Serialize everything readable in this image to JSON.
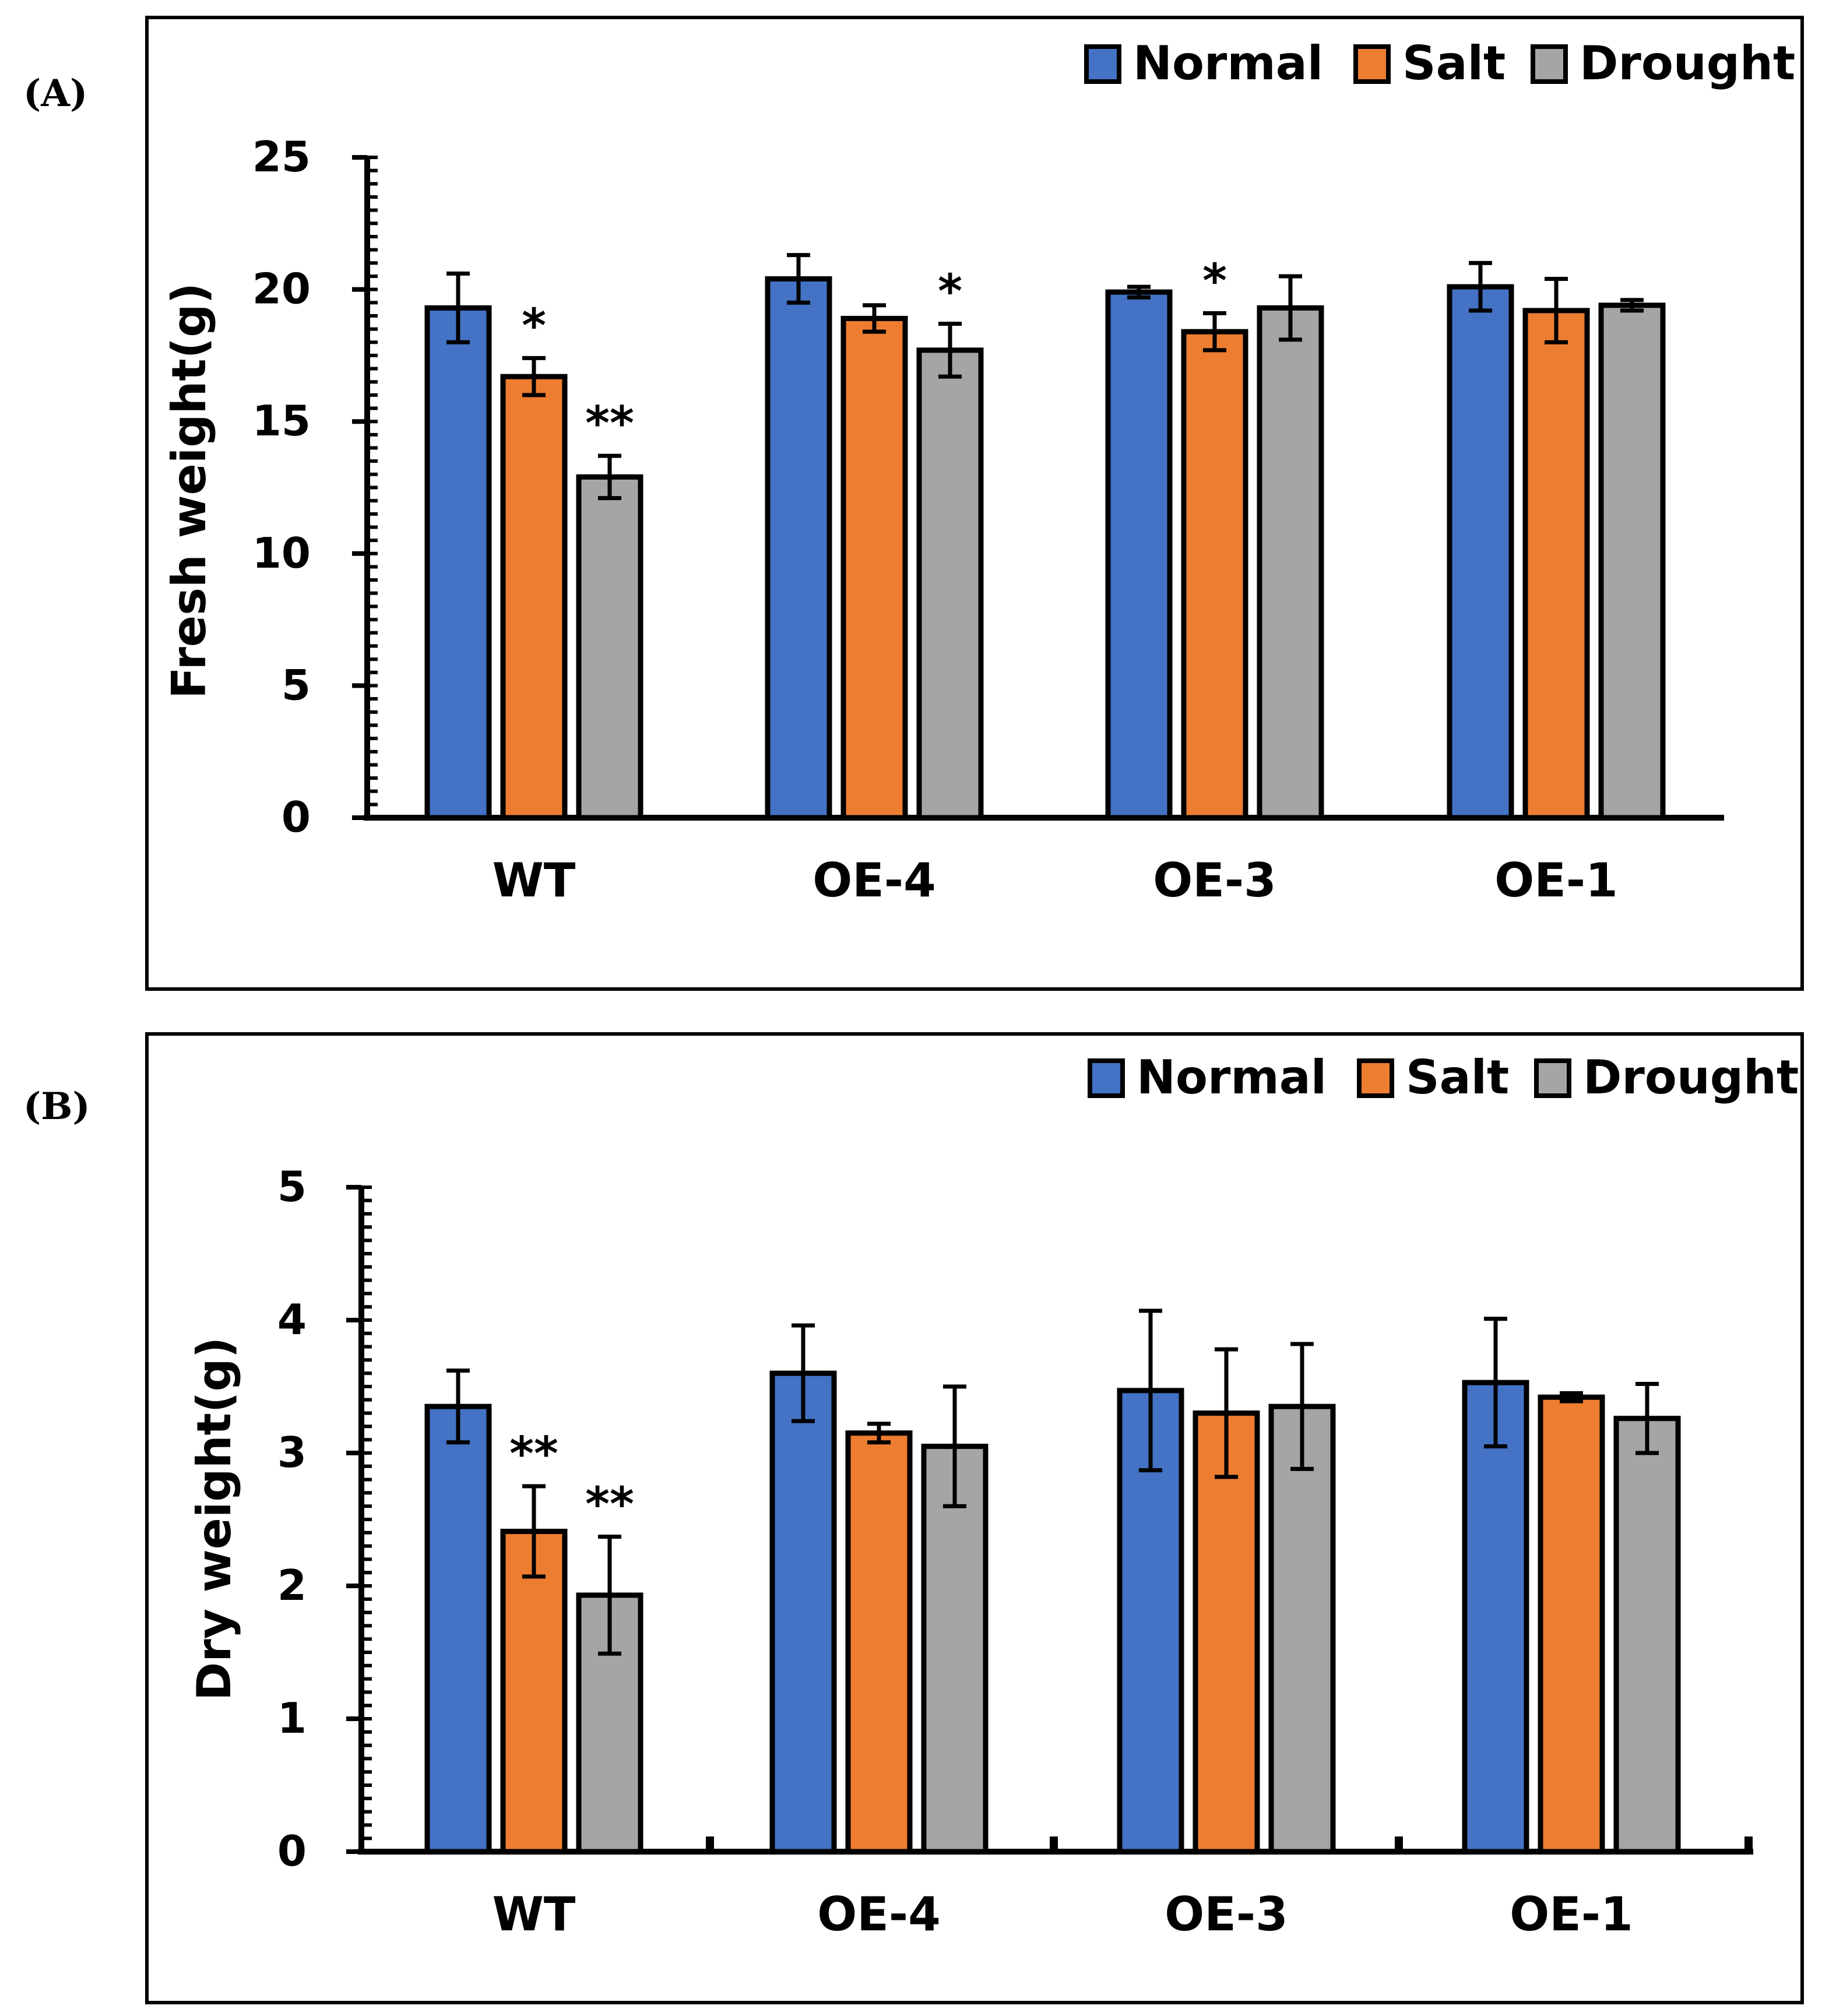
{
  "chart_data": [
    {
      "type": "bar",
      "panel_label": "(A)",
      "ylabel": "Fresh weight(g)",
      "xlabel": "",
      "ylim": [
        0,
        25
      ],
      "yticks": [
        0,
        5,
        10,
        15,
        20,
        25
      ],
      "categories": [
        "WT",
        "OE-4",
        "OE-3",
        "OE-1"
      ],
      "series": [
        {
          "name": "Normal",
          "color": "#4472C4",
          "values": [
            19.3,
            20.4,
            19.9,
            20.1
          ],
          "errors": [
            1.3,
            0.9,
            0.2,
            0.9
          ]
        },
        {
          "name": "Salt",
          "color": "#ED7D31",
          "values": [
            16.7,
            18.9,
            18.4,
            19.2
          ],
          "errors": [
            0.7,
            0.5,
            0.7,
            1.2
          ]
        },
        {
          "name": "Drought",
          "color": "#A5A5A5",
          "values": [
            12.9,
            17.7,
            19.3,
            19.4
          ],
          "errors": [
            0.8,
            1.0,
            1.2,
            0.2
          ]
        }
      ],
      "annotations": [
        {
          "category": 0,
          "series": 1,
          "text": "*"
        },
        {
          "category": 0,
          "series": 2,
          "text": "**"
        },
        {
          "category": 1,
          "series": 2,
          "text": "*"
        },
        {
          "category": 2,
          "series": 1,
          "text": "*"
        }
      ],
      "legend_position": "top-right"
    },
    {
      "type": "bar",
      "panel_label": "(B)",
      "ylabel": "Dry weight(g)",
      "xlabel": "",
      "ylim": [
        0,
        5
      ],
      "yticks": [
        0,
        1,
        2,
        3,
        4,
        5
      ],
      "categories": [
        "WT",
        "OE-4",
        "OE-3",
        "OE-1"
      ],
      "series": [
        {
          "name": "Normal",
          "color": "#4472C4",
          "values": [
            3.35,
            3.6,
            3.47,
            3.53
          ],
          "errors": [
            0.27,
            0.36,
            0.6,
            0.48
          ]
        },
        {
          "name": "Salt",
          "color": "#ED7D31",
          "values": [
            2.41,
            3.15,
            3.3,
            3.42
          ],
          "errors": [
            0.34,
            0.07,
            0.48,
            0.03
          ]
        },
        {
          "name": "Drought",
          "color": "#A5A5A5",
          "values": [
            1.93,
            3.05,
            3.35,
            3.26
          ],
          "errors": [
            0.44,
            0.45,
            0.47,
            0.26
          ]
        }
      ],
      "annotations": [
        {
          "category": 0,
          "series": 1,
          "text": "**"
        },
        {
          "category": 0,
          "series": 2,
          "text": "**"
        }
      ],
      "legend_position": "top-right"
    }
  ]
}
